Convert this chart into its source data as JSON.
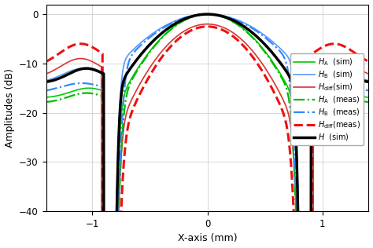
{
  "title": "",
  "xlabel": "X-axis (mm)",
  "ylabel": "Amplitudes (dB)",
  "xlim": [
    -1.4,
    1.4
  ],
  "ylim": [
    -40,
    2
  ],
  "yticks": [
    0,
    -10,
    -20,
    -30,
    -40
  ],
  "xticks": [
    -1,
    0,
    1
  ],
  "background_color": "#ffffff",
  "grid_color": "#cccccc",
  "curves": {
    "HA_sim": {
      "color": "#00cc00",
      "lw": 1.2,
      "ls": "-",
      "label": "$H_\\mathrm{A}$  (sim)"
    },
    "HB_sim": {
      "color": "#5599ff",
      "lw": 1.2,
      "ls": "-",
      "label": "$H_\\mathrm{B}$  (sim)"
    },
    "Hdiff_sim": {
      "color": "#dd3333",
      "lw": 1.2,
      "ls": "-",
      "label": "$H_\\mathrm{diff}$(sim)"
    },
    "HA_meas": {
      "color": "#00bb00",
      "lw": 1.6,
      "ls": "-.",
      "label": "$H_\\mathrm{A}$  (meas)"
    },
    "HB_meas": {
      "color": "#3388ff",
      "lw": 1.6,
      "ls": "-.",
      "label": "$H_\\mathrm{B}$  (meas)"
    },
    "Hdiff_meas": {
      "color": "#ee1111",
      "lw": 2.2,
      "ls": "--",
      "label": "$H_\\mathrm{diff}$(meas)"
    },
    "H_sim": {
      "color": "#000000",
      "lw": 2.5,
      "ls": "-",
      "label": "$H$  (sim)"
    }
  }
}
